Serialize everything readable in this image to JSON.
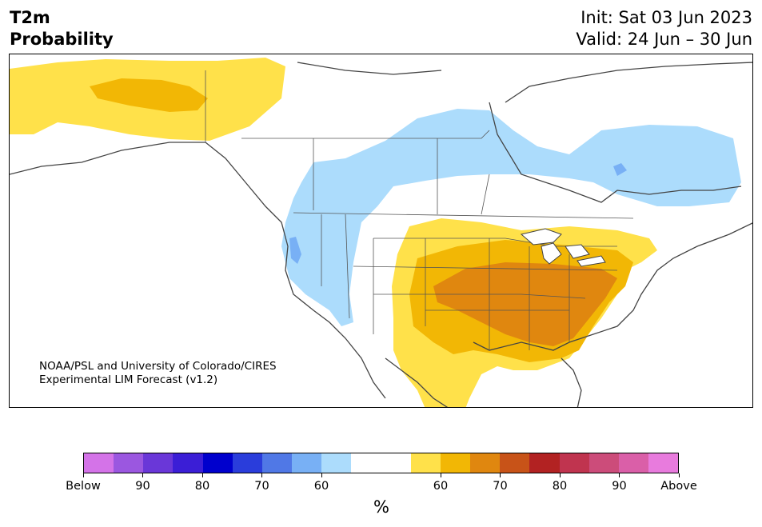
{
  "title": {
    "line1": "T2m",
    "line2": "Probability"
  },
  "dates": {
    "init": "Init: Sat 03 Jun 2023",
    "valid": "Valid: 24 Jun – 30 Jun"
  },
  "credit": {
    "line1": "NOAA/PSL and University of Colorado/CIRES",
    "line2": "Experimental LIM Forecast (v1.2)"
  },
  "colorbar": {
    "unit": "%",
    "colors": [
      "#d473e8",
      "#9b57e0",
      "#6a37d8",
      "#3b1ed6",
      "#0000cd",
      "#2a3ddb",
      "#5078e6",
      "#78b0f5",
      "#acdcfc",
      "#ffffff",
      "#ffffff",
      "#ffe14a",
      "#f2b705",
      "#e0870f",
      "#c85318",
      "#b22222",
      "#c0344f",
      "#cc4c7a",
      "#da5fa8",
      "#e87bdd"
    ],
    "ticks": [
      "Below",
      "90",
      "80",
      "70",
      "60",
      "60",
      "70",
      "80",
      "90",
      "Above"
    ]
  },
  "legend": {
    "lightblue": "#acdcfc",
    "midblue": "#78b0f5",
    "yellow": "#ffe14a",
    "gold": "#f2b705",
    "orange": "#e0870f"
  }
}
